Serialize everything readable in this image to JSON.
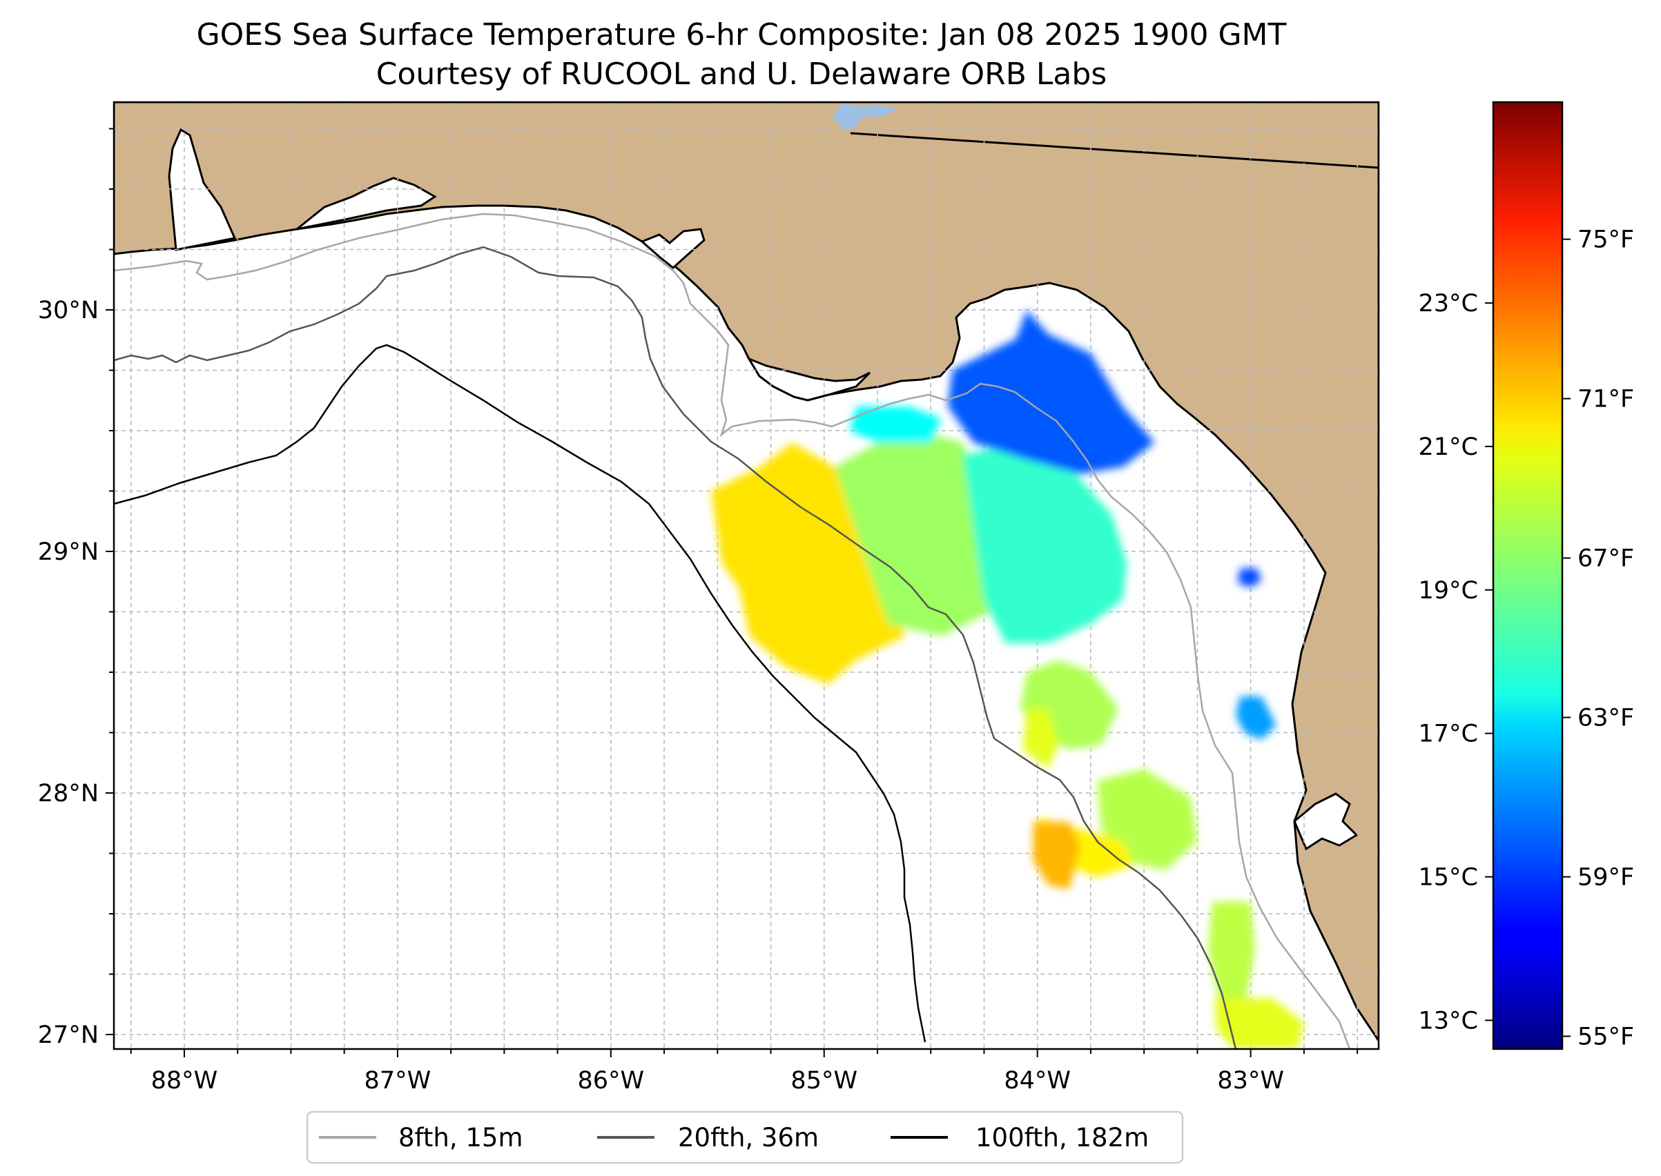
{
  "title": {
    "line1": "GOES Sea Surface Temperature 6-hr Composite: Jan 08 2025 1900 GMT",
    "line2": "Courtesy of RUCOOL and U. Delaware ORB Labs"
  },
  "map": {
    "lon_range": [
      -88.33,
      -82.4
    ],
    "lat_range": [
      26.94,
      30.86
    ],
    "lat_ticks": [
      {
        "value": 27,
        "label": "27°N"
      },
      {
        "value": 28,
        "label": "28°N"
      },
      {
        "value": 29,
        "label": "29°N"
      },
      {
        "value": 30,
        "label": "30°N"
      }
    ],
    "lon_ticks": [
      {
        "value": -88,
        "label": "88°W"
      },
      {
        "value": -87,
        "label": "87°W"
      },
      {
        "value": -86,
        "label": "86°W"
      },
      {
        "value": -85,
        "label": "85°W"
      },
      {
        "value": -84,
        "label": "84°W"
      },
      {
        "value": -83,
        "label": "83°W"
      }
    ],
    "gridline_spacing_deg": 0.25,
    "land_color": "#d2b48c",
    "ocean_color": "#ffffff"
  },
  "colorbar": {
    "cmap": "jet",
    "range_c": [
      12.6,
      25.8
    ],
    "celsius_ticks": [
      {
        "value": 13,
        "label": "13°C"
      },
      {
        "value": 15,
        "label": "15°C"
      },
      {
        "value": 17,
        "label": "17°C"
      },
      {
        "value": 19,
        "label": "19°C"
      },
      {
        "value": 21,
        "label": "21°C"
      },
      {
        "value": 23,
        "label": "23°C"
      }
    ],
    "fahrenheit_ticks": [
      {
        "value": 55,
        "label": "55°F"
      },
      {
        "value": 59,
        "label": "59°F"
      },
      {
        "value": 63,
        "label": "63°F"
      },
      {
        "value": 67,
        "label": "67°F"
      },
      {
        "value": 71,
        "label": "71°F"
      },
      {
        "value": 75,
        "label": "75°F"
      }
    ]
  },
  "legend": {
    "location": "below map",
    "items": [
      {
        "label": "8fth, 15m",
        "color": "#a6a6a6"
      },
      {
        "label": "20fth, 36m",
        "color": "#555555"
      },
      {
        "label": "100fth, 182m",
        "color": "#000000"
      }
    ]
  },
  "sst_patches": [
    {
      "name": "western-warm-patch",
      "lon": -85.05,
      "lat": 28.95,
      "temp_c": 21.2
    },
    {
      "name": "central-green-patch",
      "lon": -84.55,
      "lat": 29.05,
      "temp_c": 19.6
    },
    {
      "name": "eastern-cyan-patch",
      "lon": -83.95,
      "lat": 29.15,
      "temp_c": 18.2
    },
    {
      "name": "apalachee-blue-patch",
      "lon": -84.05,
      "lat": 29.65,
      "temp_c": 15.4
    },
    {
      "name": "northern-cyan-strip",
      "lon": -84.75,
      "lat": 29.55,
      "temp_c": 17.6
    },
    {
      "name": "coastal-blue-spot",
      "lon": -83.0,
      "lat": 28.9,
      "temp_c": 15.2
    },
    {
      "name": "coastal-blue-patch-2",
      "lon": -82.95,
      "lat": 28.32,
      "temp_c": 16.3
    },
    {
      "name": "mid-shelf-green",
      "lon": -83.88,
      "lat": 28.36,
      "temp_c": 19.8
    },
    {
      "name": "mid-shelf-yellow",
      "lon": -83.95,
      "lat": 28.25,
      "temp_c": 20.5
    },
    {
      "name": "southern-green",
      "lon": -83.45,
      "lat": 27.92,
      "temp_c": 19.9
    },
    {
      "name": "southern-yellow",
      "lon": -83.82,
      "lat": 27.75,
      "temp_c": 21.0
    },
    {
      "name": "southern-orange",
      "lon": -83.88,
      "lat": 27.68,
      "temp_c": 21.8
    },
    {
      "name": "tampa-green",
      "lon": -83.08,
      "lat": 27.35,
      "temp_c": 20.0
    },
    {
      "name": "tampa-yellow",
      "lon": -83.05,
      "lat": 27.08,
      "temp_c": 20.5
    }
  ]
}
